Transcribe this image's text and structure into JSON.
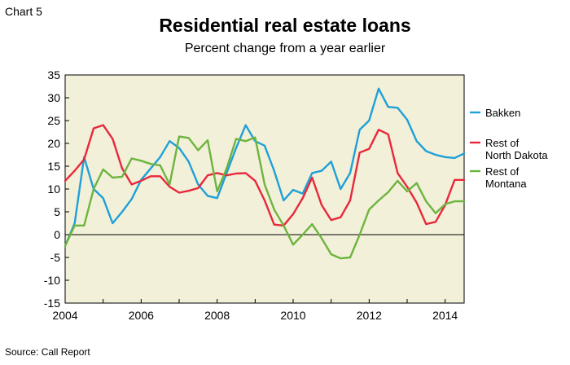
{
  "header": {
    "chart_number": "Chart 5",
    "title": "Residential real estate loans",
    "subtitle": "Percent change from a year earlier"
  },
  "footer": {
    "source": "Source: Call Report"
  },
  "chart_data": {
    "type": "line",
    "title": "Residential real estate loans",
    "subtitle": "Percent change from a year earlier",
    "xlabel": "",
    "ylabel": "",
    "xlim": [
      2004,
      2014.5
    ],
    "ylim": [
      -15,
      35
    ],
    "x_ticks": [
      2004,
      2006,
      2008,
      2010,
      2012,
      2014
    ],
    "y_ticks": [
      35,
      30,
      25,
      20,
      15,
      10,
      5,
      0,
      -5,
      -10,
      -15
    ],
    "grid": false,
    "plot_background": "#f2f0d8",
    "legend_position": "right",
    "x": [
      2004.0,
      2004.25,
      2004.5,
      2004.75,
      2005.0,
      2005.25,
      2005.5,
      2005.75,
      2006.0,
      2006.25,
      2006.5,
      2006.75,
      2007.0,
      2007.25,
      2007.5,
      2007.75,
      2008.0,
      2008.25,
      2008.5,
      2008.75,
      2009.0,
      2009.25,
      2009.5,
      2009.75,
      2010.0,
      2010.25,
      2010.5,
      2010.75,
      2011.0,
      2011.25,
      2011.5,
      2011.75,
      2012.0,
      2012.25,
      2012.5,
      2012.75,
      2013.0,
      2013.25,
      2013.5,
      2013.75,
      2014.0,
      2014.25,
      2014.5
    ],
    "series": [
      {
        "name": "Bakken",
        "color": "#1fa0d8",
        "values": [
          -2.5,
          2.5,
          17.0,
          10.0,
          8.0,
          2.5,
          5.0,
          7.8,
          12.0,
          14.5,
          17.0,
          20.5,
          19.0,
          16.0,
          11.0,
          8.5,
          8.0,
          13.5,
          19.0,
          24.0,
          20.5,
          19.5,
          14.0,
          7.5,
          9.8,
          9.0,
          13.5,
          14.0,
          16.0,
          10.0,
          13.5,
          23.0,
          25.0,
          32.0,
          28.0,
          27.8,
          25.2,
          20.5,
          18.3,
          17.5,
          17.0,
          16.8,
          17.8
        ]
      },
      {
        "name": "Rest of North Dakota",
        "legend_lines": [
          "Rest of",
          "North Dakota"
        ],
        "color": "#e8283c",
        "values": [
          11.8,
          14.0,
          16.5,
          23.3,
          24.0,
          21.0,
          14.5,
          11.0,
          11.8,
          12.8,
          12.8,
          10.5,
          9.2,
          9.6,
          10.2,
          13.0,
          13.5,
          13.0,
          13.4,
          13.5,
          11.8,
          7.5,
          2.2,
          2.0,
          4.5,
          8.0,
          12.5,
          6.5,
          3.2,
          3.8,
          7.5,
          18.0,
          18.8,
          23.0,
          22.0,
          13.5,
          10.5,
          7.0,
          2.3,
          2.8,
          6.5,
          12.0,
          12.0
        ]
      },
      {
        "name": "Rest of Montana",
        "legend_lines": [
          "Rest of",
          "Montana"
        ],
        "color": "#6db43f",
        "values": [
          -2.5,
          2.0,
          2.0,
          10.0,
          14.3,
          12.5,
          12.7,
          16.7,
          16.2,
          15.5,
          15.2,
          11.0,
          21.5,
          21.2,
          18.5,
          20.7,
          9.5,
          14.5,
          21.0,
          20.5,
          21.3,
          11.0,
          5.5,
          2.0,
          -2.2,
          0.0,
          2.3,
          -0.8,
          -4.3,
          -5.2,
          -5.0,
          0.0,
          5.5,
          7.5,
          9.3,
          11.8,
          9.5,
          11.3,
          7.3,
          4.7,
          6.7,
          7.3,
          7.3
        ]
      }
    ]
  }
}
